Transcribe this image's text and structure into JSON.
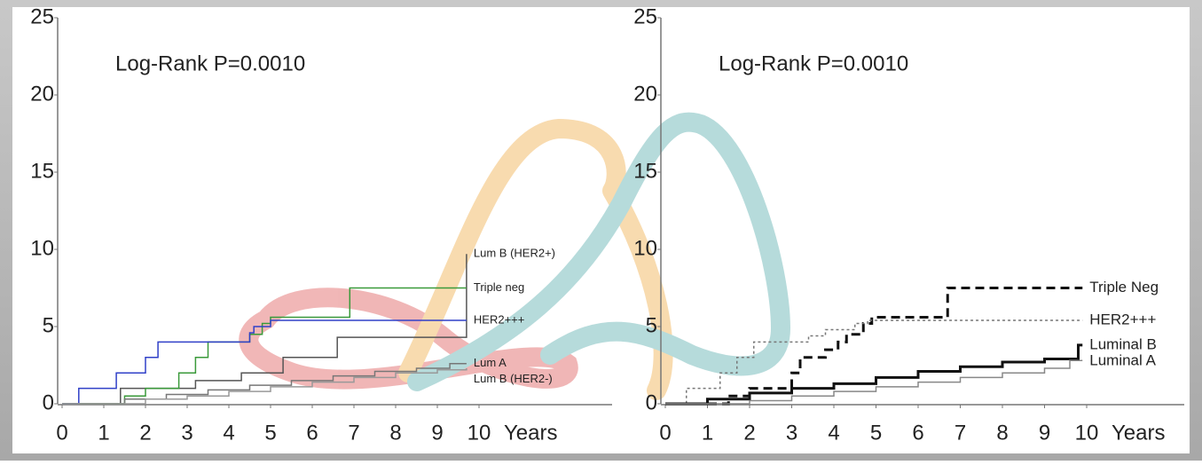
{
  "chart_data": [
    {
      "type": "step",
      "annotation": "Log-Rank  P=0.0010",
      "x_label": "Years",
      "xlim": [
        0,
        10
      ],
      "ylim": [
        0,
        25
      ],
      "xticks": [
        0,
        1,
        2,
        3,
        4,
        5,
        6,
        7,
        8,
        9,
        10
      ],
      "yticks": [
        0,
        5,
        10,
        15,
        20,
        25
      ],
      "series": [
        {
          "name": "Lum B (HER2+)",
          "color": "#555555",
          "line_style": "solid",
          "line_width": 1.5,
          "x": [
            0,
            1.4,
            3.2,
            4.3,
            5.3,
            6.6,
            9.7
          ],
          "values": [
            0,
            1,
            1.5,
            2,
            3,
            4.3,
            9.7
          ]
        },
        {
          "name": "Triple neg",
          "color": "#3a9a3a",
          "line_style": "solid",
          "line_width": 1.5,
          "x": [
            0,
            1.5,
            2,
            2.8,
            3.2,
            3.5,
            4.5,
            4.8,
            5,
            6.9,
            9.7
          ],
          "values": [
            0,
            0.5,
            1,
            2,
            3,
            4,
            4.5,
            5.2,
            5.6,
            7.5,
            7.5
          ]
        },
        {
          "name": "HER2+++",
          "color": "#3040c8",
          "line_style": "solid",
          "line_width": 1.5,
          "x": [
            0,
            0.4,
            1.3,
            2,
            2.3,
            4.5,
            4.6,
            5,
            9.7
          ],
          "values": [
            0,
            1,
            2,
            3,
            4,
            4.6,
            5,
            5.4,
            5.4
          ]
        },
        {
          "name": "Lum A",
          "color": "#777777",
          "line_style": "solid",
          "line_width": 1.5,
          "x": [
            0,
            1.5,
            2.5,
            3.5,
            4.5,
            5.5,
            6.5,
            7.5,
            8.5,
            9.3,
            9.7
          ],
          "values": [
            0,
            0.3,
            0.6,
            0.9,
            1.2,
            1.5,
            1.8,
            2.1,
            2.3,
            2.6,
            2.6
          ]
        },
        {
          "name": "Lum B (HER2-)",
          "color": "#999999",
          "line_style": "solid",
          "line_width": 1.5,
          "x": [
            0,
            2,
            3,
            4,
            5,
            6,
            7,
            8,
            9,
            9.7
          ],
          "values": [
            0,
            0.3,
            0.5,
            0.8,
            1.1,
            1.4,
            1.7,
            2,
            2.2,
            2.3
          ]
        }
      ]
    },
    {
      "type": "step",
      "annotation": "Log-Rank  P=0.0010",
      "x_label": "Years",
      "xlim": [
        0,
        10
      ],
      "ylim": [
        0,
        25
      ],
      "xticks": [
        0,
        1,
        2,
        3,
        4,
        5,
        6,
        7,
        8,
        9,
        10
      ],
      "yticks": [
        0,
        5,
        10,
        15,
        20,
        25
      ],
      "series": [
        {
          "name": "Triple Neg",
          "color": "#111111",
          "line_style": "dashed",
          "line_width": 3,
          "x": [
            0,
            1.5,
            2,
            3,
            3.2,
            3.8,
            4.1,
            4.3,
            4.7,
            4.9,
            6.7,
            9.9
          ],
          "values": [
            0,
            0.5,
            1,
            2,
            3,
            3.5,
            4,
            4.5,
            5.2,
            5.6,
            7.5,
            7.5
          ]
        },
        {
          "name": "HER2+++",
          "color": "#777777",
          "line_style": "dotted",
          "line_width": 1.5,
          "x": [
            0,
            0.5,
            1.3,
            1.7,
            2.1,
            3.4,
            3.8,
            4.5,
            4.8,
            9.9
          ],
          "values": [
            0,
            1,
            2,
            3,
            4,
            4.4,
            4.8,
            5.2,
            5.4,
            5.4
          ]
        },
        {
          "name": "Luminal B",
          "color": "#111111",
          "line_style": "solid",
          "line_width": 3,
          "x": [
            0,
            1,
            2,
            3,
            4,
            5,
            6,
            7,
            8,
            9,
            9.8,
            9.9
          ],
          "values": [
            0,
            0.3,
            0.7,
            1,
            1.3,
            1.7,
            2.1,
            2.4,
            2.7,
            2.9,
            3.8,
            3.8
          ]
        },
        {
          "name": "Luminal A",
          "color": "#888888",
          "line_style": "solid",
          "line_width": 1.5,
          "x": [
            0,
            2,
            3,
            4,
            5,
            6,
            7,
            8,
            9,
            9.6,
            9.9
          ],
          "values": [
            0,
            0.2,
            0.5,
            0.8,
            1.1,
            1.4,
            1.7,
            2,
            2.3,
            2.8,
            2.8
          ]
        }
      ]
    }
  ]
}
